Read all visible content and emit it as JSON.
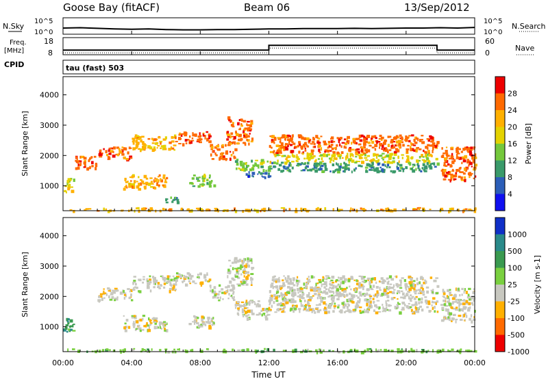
{
  "header": {
    "station": "Goose Bay (fitACF)",
    "beam": "Beam 06",
    "date": "13/Sep/2012"
  },
  "top_panels": {
    "nsky_label": "N.Sky",
    "nsky_ticks": [
      "10^5",
      "10^0"
    ],
    "nsky_right_ticks": [
      "10^5",
      "10^0"
    ],
    "nsearch_label": "N.Search",
    "freq_label_line1": "Freq.",
    "freq_label_line2": "[MHz]",
    "freq_ticks": [
      "18",
      "8"
    ],
    "nave_label": "Nave",
    "nave_ticks": [
      "60",
      "0"
    ],
    "cpid_label": "CPID",
    "cpid_text": "tau (fast) 503"
  },
  "chart_data": [
    {
      "type": "heatmap",
      "name": "power-panel",
      "xlabel": "",
      "ylabel": "Slant Range [km]",
      "xlim": [
        0,
        24
      ],
      "ylim": [
        180,
        4600
      ],
      "y_ticks": [
        1000,
        2000,
        3000,
        4000
      ],
      "colorbar_label": "Power [dB]",
      "colorbar_ticks": [
        "28",
        "24",
        "20",
        "16",
        "12",
        "8",
        "4"
      ],
      "colorbar_colors": [
        "#ee0000",
        "#ff6a00",
        "#ffb000",
        "#e4d200",
        "#74c83c",
        "#3a9a6a",
        "#2c5eb8",
        "#1010f0"
      ],
      "bands": [
        {
          "t0": 0.0,
          "t1": 0.6,
          "r0": 800,
          "r1": 1300,
          "level": 3
        },
        {
          "t0": 0.6,
          "t1": 2.0,
          "r0": 1600,
          "r1": 2000,
          "level": 1
        },
        {
          "t0": 2.0,
          "t1": 4.0,
          "r0": 1900,
          "r1": 2300,
          "level": 1
        },
        {
          "t0": 4.0,
          "t1": 6.5,
          "r0": 2200,
          "r1": 2700,
          "level": 2
        },
        {
          "t0": 6.5,
          "t1": 8.5,
          "r0": 2400,
          "r1": 2800,
          "level": 1
        },
        {
          "t0": 3.5,
          "t1": 6.0,
          "r0": 900,
          "r1": 1400,
          "level": 2
        },
        {
          "t0": 5.8,
          "t1": 6.8,
          "r0": 450,
          "r1": 650,
          "level": 5
        },
        {
          "t0": 7.3,
          "t1": 8.8,
          "r0": 1000,
          "r1": 1400,
          "level": 4
        },
        {
          "t0": 8.5,
          "t1": 10.0,
          "r0": 1900,
          "r1": 2400,
          "level": 1
        },
        {
          "t0": 9.5,
          "t1": 11.0,
          "r0": 2400,
          "r1": 3300,
          "level": 1
        },
        {
          "t0": 10.0,
          "t1": 12.0,
          "r0": 1500,
          "r1": 1900,
          "level": 4
        },
        {
          "t0": 10.5,
          "t1": 12.0,
          "r0": 1300,
          "r1": 1500,
          "level": 6
        },
        {
          "t0": 12.0,
          "t1": 21.8,
          "r0": 2100,
          "r1": 2700,
          "level": 1
        },
        {
          "t0": 12.0,
          "t1": 21.8,
          "r0": 1800,
          "r1": 2100,
          "level": 3
        },
        {
          "t0": 12.0,
          "t1": 21.8,
          "r0": 1500,
          "r1": 1800,
          "level": 5
        },
        {
          "t0": 22.0,
          "t1": 24.0,
          "r0": 1200,
          "r1": 2300,
          "level": 1
        },
        {
          "t0": 0.0,
          "t1": 24.0,
          "r0": 200,
          "r1": 300,
          "level": 2
        }
      ]
    },
    {
      "type": "heatmap",
      "name": "velocity-panel",
      "xlabel": "Time UT",
      "ylabel": "Slant Range [km]",
      "xlim": [
        0,
        24
      ],
      "ylim": [
        180,
        4600
      ],
      "x_ticks": [
        "00:00",
        "04:00",
        "08:00",
        "12:00",
        "16:00",
        "20:00",
        "00:00"
      ],
      "y_ticks": [
        1000,
        2000,
        3000,
        4000
      ],
      "colorbar_label": "Velocity [m s-1]",
      "colorbar_ticks": [
        "1000",
        "500",
        "100",
        "25",
        "-25",
        "-100",
        "-500",
        "-1000"
      ],
      "colorbar_colors": [
        "#1030c8",
        "#2a8a8a",
        "#3a9a50",
        "#7ad040",
        "#c8c8c0",
        "#ffb000",
        "#ff6a00",
        "#ee0000"
      ],
      "bands": [
        {
          "t0": 0.0,
          "t1": 0.6,
          "r0": 800,
          "r1": 1300,
          "level": 2
        },
        {
          "t0": 2.0,
          "t1": 4.0,
          "r0": 1900,
          "r1": 2300,
          "level": 4
        },
        {
          "t0": 4.0,
          "t1": 6.5,
          "r0": 2200,
          "r1": 2700,
          "level": 4
        },
        {
          "t0": 6.5,
          "t1": 8.5,
          "r0": 2400,
          "r1": 2800,
          "level": 4
        },
        {
          "t0": 3.5,
          "t1": 6.0,
          "r0": 900,
          "r1": 1400,
          "level": 4
        },
        {
          "t0": 7.3,
          "t1": 8.8,
          "r0": 1000,
          "r1": 1400,
          "level": 4
        },
        {
          "t0": 8.5,
          "t1": 10.0,
          "r0": 1900,
          "r1": 2400,
          "level": 4
        },
        {
          "t0": 9.5,
          "t1": 11.0,
          "r0": 2400,
          "r1": 3300,
          "level": 4
        },
        {
          "t0": 10.0,
          "t1": 12.0,
          "r0": 1300,
          "r1": 1900,
          "level": 4
        },
        {
          "t0": 12.0,
          "t1": 21.8,
          "r0": 1500,
          "r1": 2700,
          "level": 4
        },
        {
          "t0": 22.0,
          "t1": 24.0,
          "r0": 1200,
          "r1": 2300,
          "level": 4
        },
        {
          "t0": 0.0,
          "t1": 24.0,
          "r0": 200,
          "r1": 300,
          "level": 3
        }
      ]
    }
  ],
  "nsky_series": [
    1.6,
    1.7,
    1.5,
    1.3,
    1.2,
    1.3,
    1.1,
    1.0,
    1.0,
    1.1,
    1.1,
    1.2,
    1.3,
    1.3,
    1.4,
    1.4,
    1.4,
    1.5,
    1.4,
    1.5,
    1.6,
    1.6,
    1.7,
    1.6,
    1.8
  ],
  "nave_series": [
    {
      "t0": 0.0,
      "t1": 12.0,
      "value": 15
    },
    {
      "t0": 12.0,
      "t1": 21.8,
      "value": 33
    },
    {
      "t0": 21.8,
      "t1": 24.0,
      "value": 15
    }
  ]
}
